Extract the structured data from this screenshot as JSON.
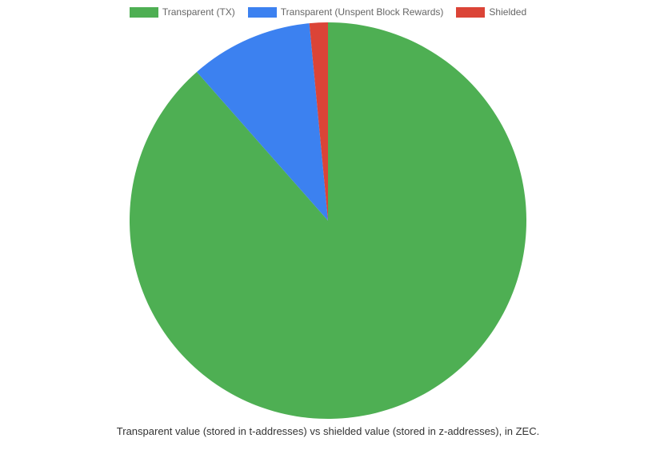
{
  "chart": {
    "type": "pie",
    "background_color": "#ffffff",
    "legend_text_color": "#666666",
    "caption_text_color": "#333333",
    "caption": "Transparent value (stored in t-addresses) vs shielded value (stored in z-addresses), in ZEC.",
    "slices": [
      {
        "label": "Transparent (TX)",
        "value": 88.5,
        "color": "#4eaf53"
      },
      {
        "label": "Transparent (Unspent Block Rewards)",
        "value": 10,
        "color": "#3c81f0"
      },
      {
        "label": "Shielded",
        "value": 1.5,
        "color": "#db4437"
      }
    ],
    "pie_radius": 248,
    "legend_swatch_width": 36,
    "legend_swatch_height": 13,
    "legend_fontsize": 12,
    "caption_fontsize": 13
  }
}
